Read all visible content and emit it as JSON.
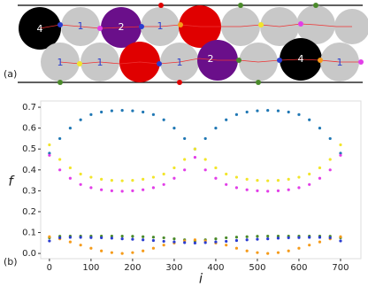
{
  "panel_a": {
    "label": "(a)",
    "top_labels": [
      "4",
      "1",
      "2",
      "1"
    ],
    "bottom_labels": [
      "1",
      "1",
      "1",
      "2",
      "4",
      "1"
    ]
  },
  "chart_data": {
    "type": "scatter",
    "panel_label": "(b)",
    "x_label": "i",
    "y_label": "f",
    "x": [
      0,
      25,
      50,
      75,
      100,
      125,
      150,
      175,
      200,
      225,
      250,
      275,
      300,
      325,
      350,
      375,
      400,
      425,
      450,
      475,
      500,
      525,
      550,
      575,
      600,
      625,
      650,
      675,
      700
    ],
    "series": [
      {
        "color": "#1f77b4",
        "values": [
          0.48,
          0.55,
          0.6,
          0.64,
          0.665,
          0.677,
          0.683,
          0.685,
          0.683,
          0.677,
          0.665,
          0.64,
          0.6,
          0.55,
          0.5,
          0.55,
          0.6,
          0.64,
          0.665,
          0.677,
          0.683,
          0.685,
          0.683,
          0.677,
          0.665,
          0.64,
          0.6,
          0.55,
          0.48
        ]
      },
      {
        "color": "#f2e52b",
        "values": [
          0.52,
          0.45,
          0.41,
          0.38,
          0.365,
          0.355,
          0.35,
          0.348,
          0.35,
          0.355,
          0.365,
          0.38,
          0.41,
          0.45,
          0.5,
          0.45,
          0.41,
          0.38,
          0.365,
          0.355,
          0.35,
          0.348,
          0.35,
          0.355,
          0.365,
          0.38,
          0.41,
          0.45,
          0.52
        ]
      },
      {
        "color": "#e23ee8",
        "values": [
          0.47,
          0.4,
          0.36,
          0.33,
          0.315,
          0.305,
          0.3,
          0.298,
          0.3,
          0.305,
          0.315,
          0.33,
          0.36,
          0.4,
          0.46,
          0.4,
          0.36,
          0.33,
          0.315,
          0.305,
          0.3,
          0.298,
          0.3,
          0.305,
          0.315,
          0.33,
          0.36,
          0.4,
          0.47
        ]
      },
      {
        "color": "#4a8a2a",
        "values": [
          0.075,
          0.082,
          0.083,
          0.083,
          0.083,
          0.083,
          0.083,
          0.083,
          0.082,
          0.08,
          0.078,
          0.075,
          0.07,
          0.065,
          0.06,
          0.065,
          0.07,
          0.075,
          0.078,
          0.08,
          0.082,
          0.083,
          0.083,
          0.083,
          0.083,
          0.083,
          0.083,
          0.082,
          0.075
        ]
      },
      {
        "color": "#f59b1a",
        "values": [
          0.08,
          0.07,
          0.055,
          0.04,
          0.025,
          0.012,
          0.004,
          0.0,
          0.004,
          0.012,
          0.025,
          0.04,
          0.05,
          0.06,
          0.065,
          0.06,
          0.05,
          0.04,
          0.025,
          0.012,
          0.004,
          0.0,
          0.004,
          0.012,
          0.025,
          0.04,
          0.055,
          0.07,
          0.08
        ]
      },
      {
        "color": "#2a3ccf",
        "values": [
          0.06,
          0.075,
          0.077,
          0.077,
          0.076,
          0.075,
          0.073,
          0.07,
          0.068,
          0.065,
          0.062,
          0.058,
          0.055,
          0.052,
          0.05,
          0.052,
          0.055,
          0.058,
          0.062,
          0.065,
          0.068,
          0.07,
          0.073,
          0.075,
          0.076,
          0.077,
          0.077,
          0.075,
          0.06
        ]
      }
    ],
    "xlim": [
      -21,
      749
    ],
    "ylim": [
      -0.025,
      0.73
    ],
    "xticks": [
      0,
      100,
      200,
      300,
      400,
      500,
      600,
      700
    ],
    "yticks": [
      {
        "value": 0,
        "label": "0.0"
      },
      0.1,
      0.2,
      0.3,
      0.4,
      0.5,
      0.6,
      0.7
    ]
  }
}
